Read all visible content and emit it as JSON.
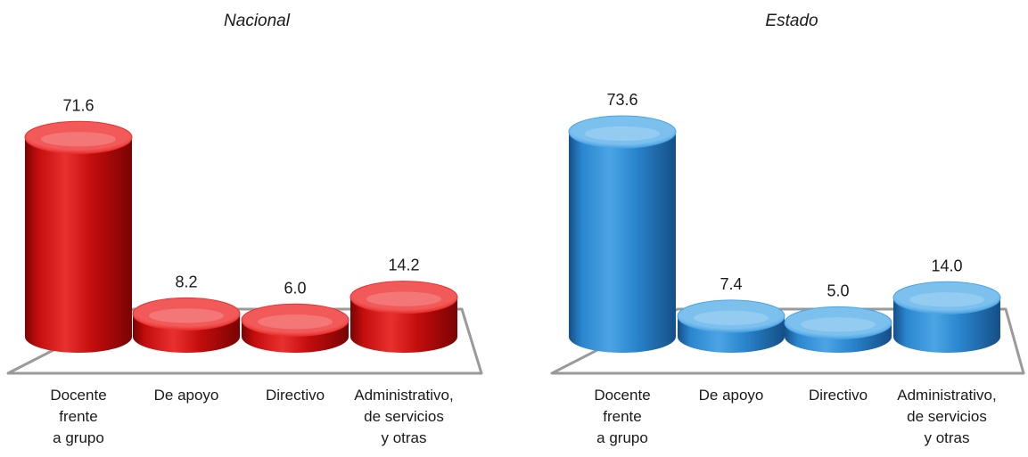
{
  "chart_data": [
    {
      "type": "bar",
      "title": "Nacional",
      "categories": [
        "Docente frente a grupo",
        "De apoyo",
        "Directivo",
        "Administrativo, de servicios y otras"
      ],
      "category_lines": [
        [
          "Docente",
          "frente",
          "a grupo"
        ],
        [
          "De apoyo"
        ],
        [
          "Directivo"
        ],
        [
          "Administrativo,",
          "de servicios",
          "y otras"
        ]
      ],
      "values": [
        71.6,
        8.2,
        6.0,
        14.2
      ],
      "value_labels": [
        "71.6",
        "8.2",
        "6.0",
        "14.2"
      ],
      "xlabel": "",
      "ylabel": "",
      "ylim": [
        0,
        80
      ],
      "grid": false,
      "style": "3d-cylinder",
      "colors": {
        "top": "#f25a5a",
        "body_light": "#e8312f",
        "body": "#c40d0d",
        "body_dark": "#7a0303"
      }
    },
    {
      "type": "bar",
      "title": "Estado",
      "categories": [
        "Docente frente a grupo",
        "De apoyo",
        "Directivo",
        "Administrativo, de servicios y otras"
      ],
      "category_lines": [
        [
          "Docente",
          "frente",
          "a grupo"
        ],
        [
          "De apoyo"
        ],
        [
          "Directivo"
        ],
        [
          "Administrativo,",
          "de servicios",
          "y otras"
        ]
      ],
      "values": [
        73.6,
        7.4,
        5.0,
        14.0
      ],
      "value_labels": [
        "73.6",
        "7.4",
        "5.0",
        "14.0"
      ],
      "xlabel": "",
      "ylabel": "",
      "ylim": [
        0,
        80
      ],
      "grid": false,
      "style": "3d-cylinder",
      "colors": {
        "top": "#7cc0ee",
        "body_light": "#4ca4e4",
        "body": "#2a86cf",
        "body_dark": "#154f86"
      }
    }
  ],
  "floor_color": "#9a9a9a"
}
